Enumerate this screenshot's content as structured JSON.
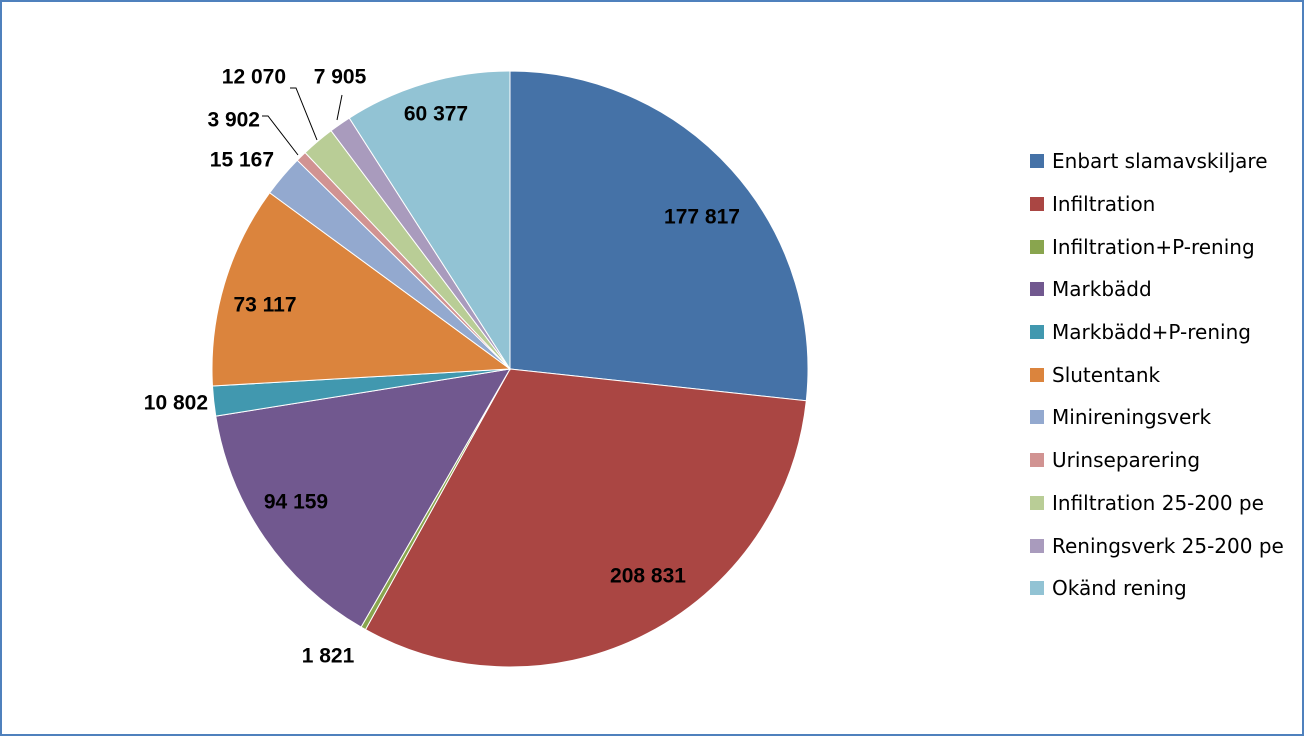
{
  "chart_data": {
    "type": "pie",
    "title": "",
    "legend_position": "right",
    "series": [
      {
        "values": [
          177817,
          208831,
          1821,
          94159,
          10802,
          73117,
          15167,
          3902,
          12070,
          7905,
          60377
        ],
        "labels": [
          "177 817",
          "208 831",
          "1 821",
          "94 159",
          "10 802",
          "73 117",
          "15 167",
          "3 902",
          "12 070",
          "7 905",
          "60 377"
        ]
      }
    ],
    "categories": [
      "Enbart slamavskiljare",
      "Infiltration",
      "Infiltration+P-rening",
      "Markbädd",
      "Markbädd+P-rening",
      "Slutentank",
      "Minireningsverk",
      "Urinseparering",
      "Infiltration 25-200 pe",
      "Reningsverk 25-200 pe",
      "Okänd rening"
    ],
    "colors": [
      "#4572a7",
      "#aa4643",
      "#89a54e",
      "#71588f",
      "#4198af",
      "#db843d",
      "#93a9cf",
      "#d19392",
      "#b9cd96",
      "#a99bbd",
      "#92c3d4"
    ],
    "start_angle_deg": 0,
    "direction": "clockwise"
  }
}
